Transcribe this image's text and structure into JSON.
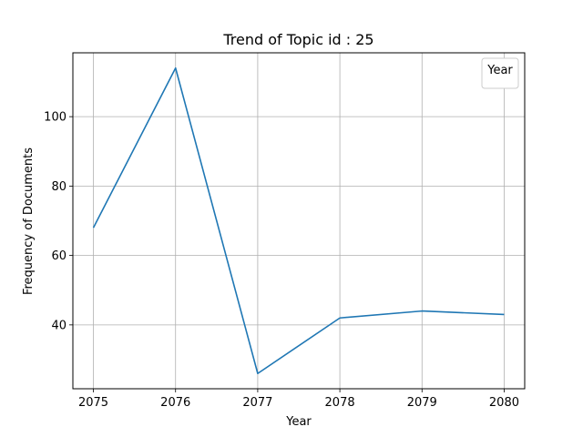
{
  "chart_data": {
    "type": "line",
    "title": "Trend of Topic id : 25",
    "xlabel": "Year",
    "ylabel": "Frequency of Documents",
    "x": [
      2075,
      2076,
      2077,
      2078,
      2079,
      2080
    ],
    "series": [
      {
        "values": [
          68,
          114,
          26,
          42,
          44,
          43
        ],
        "color": "#1f77b4"
      }
    ],
    "xlim": [
      2074.75,
      2080.25
    ],
    "ylim": [
      21.6,
      118.4
    ],
    "yticks": [
      40,
      60,
      80,
      100
    ],
    "xticks": [
      2075,
      2076,
      2077,
      2078,
      2079,
      2080
    ],
    "grid": true,
    "legend": {
      "title": "Year",
      "placement": "top-right"
    }
  }
}
